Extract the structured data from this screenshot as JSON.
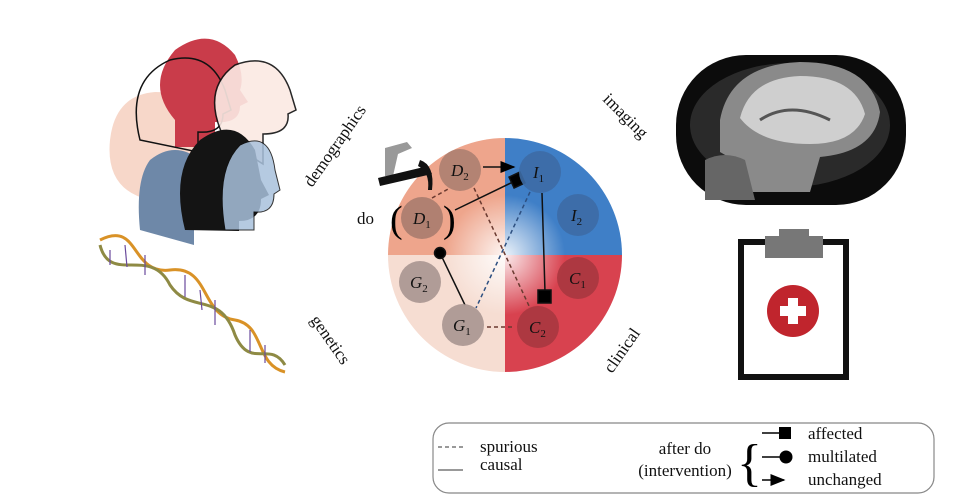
{
  "categories": {
    "demographics": "demographics",
    "imaging": "imaging",
    "genetics": "genetics",
    "clinical": "clinical"
  },
  "do_label": "do",
  "quadrant_colors": {
    "demographics": "#eea58c",
    "imaging": "#3f7fc7",
    "genetics": "#f6ddd2",
    "clinical": "#d8424f"
  },
  "nodes": [
    {
      "id": "D2",
      "letter": "D",
      "sub": "2"
    },
    {
      "id": "I1",
      "letter": "I",
      "sub": "1"
    },
    {
      "id": "D1",
      "letter": "D",
      "sub": "1"
    },
    {
      "id": "I2",
      "letter": "I",
      "sub": "2"
    },
    {
      "id": "G2",
      "letter": "G",
      "sub": "2"
    },
    {
      "id": "C1",
      "letter": "C",
      "sub": "1"
    },
    {
      "id": "G1",
      "letter": "G",
      "sub": "1"
    },
    {
      "id": "C2",
      "letter": "C",
      "sub": "2"
    }
  ],
  "edges": [
    {
      "from": "D2",
      "to": "I1",
      "type": "unchanged"
    },
    {
      "from": "D1",
      "to": "I1",
      "type": "affected"
    },
    {
      "from": "G1",
      "to": "D1",
      "type": "multilated"
    },
    {
      "from": "I1",
      "to": "C2",
      "type": "affected"
    },
    {
      "from": "D1",
      "to": "D2",
      "type": "spurious"
    },
    {
      "from": "D2",
      "to": "C2",
      "type": "spurious"
    },
    {
      "from": "I1",
      "to": "G1",
      "type": "spurious"
    },
    {
      "from": "G1",
      "to": "C2",
      "type": "spurious"
    }
  ],
  "legend": {
    "spurious": "spurious",
    "causal": "causal",
    "after_do": "after do",
    "intervention": "(intervention)",
    "affected": "affected",
    "multilated": "multilated",
    "unchanged": "unchanged"
  },
  "icons": [
    "heads-icon",
    "dna-icon",
    "hammer-icon",
    "mri-brain-icon",
    "clipboard-medical-icon"
  ]
}
